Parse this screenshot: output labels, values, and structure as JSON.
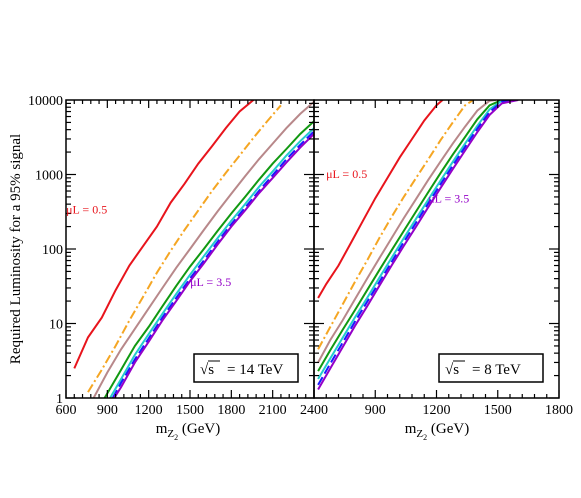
{
  "figure": {
    "ylabel": "Required Luminosity for a 95% signal",
    "xlabel_main": "m",
    "xlabel_sub": "Z",
    "xlabel_subsub": "2",
    "xlabel_unit": " (GeV)"
  },
  "chart_data": [
    {
      "type": "line",
      "panel": "left",
      "ylog": true,
      "xlim": [
        600,
        2400
      ],
      "ylim": [
        1,
        10000
      ],
      "x_ticks": [
        "600",
        "900",
        "1200",
        "1500",
        "1800",
        "2100",
        "2400"
      ],
      "y_ticks": [
        "1",
        "10",
        "100",
        "1000",
        "10000"
      ],
      "energy_label": "= 14 TeV",
      "energy_symbol": "√s",
      "annotations": [
        {
          "text": "μL = 0.5",
          "color": "#e8141c",
          "x": 750,
          "y": 300
        },
        {
          "text": "μL = 3.5",
          "color": "#9400c8",
          "x": 1650,
          "y": 32
        }
      ],
      "series": [
        {
          "color": "#e8141c",
          "style": "solid",
          "x": [
            660,
            760,
            860,
            960,
            1060,
            1160,
            1260,
            1360,
            1460,
            1560,
            1660,
            1760,
            1860,
            1960
          ],
          "y": [
            2.5,
            6.5,
            12,
            28,
            60,
            110,
            200,
            420,
            750,
            1400,
            2400,
            4200,
            7000,
            10000
          ]
        },
        {
          "color": "#f5a623",
          "style": "dashdot",
          "x": [
            760,
            860,
            960,
            1060,
            1160,
            1260,
            1360,
            1460,
            1560,
            1660,
            1760,
            1860,
            1960,
            2060,
            2160
          ],
          "y": [
            1.2,
            2.4,
            5,
            11,
            23,
            48,
            95,
            180,
            330,
            600,
            1050,
            1800,
            3100,
            5200,
            8500
          ]
        },
        {
          "color": "#b8888a",
          "style": "solid",
          "x": [
            800,
            900,
            1000,
            1100,
            1200,
            1300,
            1400,
            1500,
            1600,
            1700,
            1800,
            1900,
            2000,
            2100,
            2200,
            2300,
            2400
          ],
          "y": [
            1,
            2.2,
            4.5,
            8.5,
            16,
            30,
            56,
            100,
            180,
            320,
            550,
            950,
            1600,
            2600,
            4200,
            6500,
            9500
          ]
        },
        {
          "color": "#119911",
          "style": "solid",
          "x": [
            880,
            1000,
            1100,
            1200,
            1300,
            1400,
            1500,
            1600,
            1700,
            1800,
            1900,
            2000,
            2100,
            2200,
            2300,
            2400
          ],
          "y": [
            1,
            2.4,
            5,
            9,
            17,
            32,
            58,
            100,
            175,
            300,
            500,
            850,
            1400,
            2200,
            3500,
            5200
          ]
        },
        {
          "color": "#22cccc",
          "style": "solid",
          "x": [
            920,
            1000,
            1100,
            1200,
            1300,
            1400,
            1500,
            1600,
            1700,
            1800,
            1900,
            2000,
            2100,
            2200,
            2300,
            2400
          ],
          "y": [
            1,
            1.8,
            3.8,
            7.2,
            13.5,
            25,
            45,
            80,
            140,
            240,
            400,
            680,
            1100,
            1800,
            2800,
            4200
          ]
        },
        {
          "color": "#1a1aff",
          "style": "dashed",
          "x": [
            940,
            1000,
            1100,
            1200,
            1300,
            1400,
            1500,
            1600,
            1700,
            1800,
            1900,
            2000,
            2100,
            2200,
            2300,
            2400
          ],
          "y": [
            1,
            1.6,
            3.3,
            6.3,
            12,
            22,
            40,
            70,
            125,
            215,
            360,
            600,
            980,
            1600,
            2500,
            3800
          ]
        },
        {
          "color": "#9400c8",
          "style": "solid",
          "x": [
            950,
            1000,
            1100,
            1200,
            1300,
            1400,
            1500,
            1600,
            1700,
            1800,
            1900,
            2000,
            2100,
            2200,
            2300,
            2400
          ],
          "y": [
            1,
            1.4,
            3,
            5.7,
            11,
            20,
            37,
            64,
            115,
            200,
            330,
            560,
            900,
            1450,
            2300,
            3500
          ]
        }
      ]
    },
    {
      "type": "line",
      "panel": "right",
      "ylog": true,
      "xlim": [
        600,
        1800
      ],
      "ylim": [
        1,
        10000
      ],
      "x_ticks": [
        "900",
        "1200",
        "1500",
        "1800"
      ],
      "y_ticks": [],
      "energy_label": "= 8 TeV",
      "energy_symbol": "√s",
      "annotations": [
        {
          "text": "μL = 0.5",
          "color": "#e8141c",
          "x": 760,
          "y": 900
        },
        {
          "text": "μL = 3.5",
          "color": "#9400c8",
          "x": 1260,
          "y": 420
        }
      ],
      "series": [
        {
          "color": "#e8141c",
          "style": "solid",
          "x": [
            620,
            660,
            720,
            780,
            840,
            900,
            960,
            1020,
            1080,
            1140,
            1200,
            1230
          ],
          "y": [
            22,
            34,
            60,
            120,
            240,
            480,
            900,
            1700,
            3000,
            5300,
            8500,
            10000
          ]
        },
        {
          "color": "#f5a623",
          "style": "dashdot",
          "x": [
            620,
            680,
            740,
            800,
            860,
            920,
            980,
            1040,
            1100,
            1160,
            1220,
            1280,
            1340,
            1380
          ],
          "y": [
            4.5,
            9,
            18,
            36,
            70,
            140,
            270,
            500,
            900,
            1600,
            2900,
            5000,
            8500,
            10000
          ]
        },
        {
          "color": "#b8888a",
          "style": "solid",
          "x": [
            620,
            680,
            740,
            800,
            860,
            920,
            980,
            1040,
            1100,
            1160,
            1220,
            1280,
            1340,
            1400,
            1460,
            1490
          ],
          "y": [
            3,
            6,
            11,
            21,
            40,
            75,
            140,
            260,
            470,
            850,
            1500,
            2600,
            4400,
            7200,
            9800,
            10000
          ]
        },
        {
          "color": "#119911",
          "style": "solid",
          "x": [
            620,
            680,
            740,
            800,
            860,
            920,
            980,
            1040,
            1100,
            1160,
            1220,
            1280,
            1340,
            1400,
            1460,
            1520,
            1560
          ],
          "y": [
            2.3,
            4.4,
            8.2,
            15,
            28,
            52,
            96,
            175,
            320,
            580,
            1050,
            1850,
            3200,
            5500,
            8500,
            10000,
            10000
          ]
        },
        {
          "color": "#22cccc",
          "style": "solid",
          "x": [
            620,
            680,
            740,
            800,
            860,
            920,
            980,
            1040,
            1100,
            1160,
            1220,
            1280,
            1340,
            1400,
            1460,
            1520,
            1560
          ],
          "y": [
            1.8,
            3.4,
            6.4,
            12,
            22,
            41,
            76,
            140,
            255,
            460,
            830,
            1480,
            2600,
            4500,
            7500,
            9800,
            10000
          ]
        },
        {
          "color": "#1a1aff",
          "style": "dashed",
          "x": [
            620,
            680,
            740,
            800,
            860,
            920,
            980,
            1040,
            1100,
            1160,
            1220,
            1280,
            1340,
            1400,
            1460,
            1520,
            1580
          ],
          "y": [
            1.5,
            2.9,
            5.5,
            10.5,
            19.5,
            36,
            67,
            124,
            226,
            410,
            740,
            1320,
            2350,
            4100,
            6900,
            9500,
            10000
          ]
        },
        {
          "color": "#9400c8",
          "style": "solid",
          "x": [
            620,
            680,
            740,
            800,
            860,
            920,
            980,
            1040,
            1100,
            1160,
            1220,
            1280,
            1340,
            1400,
            1460,
            1520,
            1600
          ],
          "y": [
            1.3,
            2.5,
            4.8,
            9.2,
            17,
            32,
            60,
            110,
            200,
            365,
            660,
            1180,
            2100,
            3700,
            6300,
            9000,
            10000
          ]
        }
      ]
    }
  ]
}
